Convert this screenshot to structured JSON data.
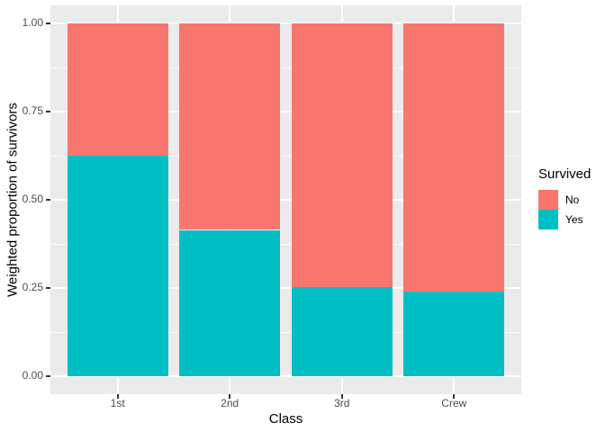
{
  "chart_data": {
    "type": "bar",
    "stacked": true,
    "title": "",
    "xlabel": "Class",
    "ylabel": "Weighted proportion of survivors",
    "categories": [
      "1st",
      "2nd",
      "3rd",
      "Crew"
    ],
    "series": [
      {
        "name": "Yes",
        "color": "#00BFC4",
        "values": [
          0.625,
          0.414,
          0.252,
          0.24
        ]
      },
      {
        "name": "No",
        "color": "#F8766D",
        "values": [
          0.375,
          0.586,
          0.748,
          0.76
        ]
      }
    ],
    "ylim": [
      0,
      1
    ],
    "yticks": [
      0,
      0.25,
      0.5,
      0.75,
      1
    ],
    "ytick_labels": [
      "0.00",
      "0.25",
      "0.50",
      "0.75",
      "1.00"
    ],
    "grid": true,
    "legend_position": "right",
    "legend_title": "Survived",
    "legend_entries": [
      {
        "label": "No",
        "color": "#F8766D"
      },
      {
        "label": "Yes",
        "color": "#00BFC4"
      }
    ],
    "colors": {
      "panel_background": "#EBEBEB",
      "grid_major": "#FFFFFF",
      "grid_minor": "#FFFFFF",
      "tick_mark": "#333333",
      "tick_text": "#4D4D4D",
      "title_text": "#000000",
      "figure_background": "#FFFFFF"
    }
  }
}
